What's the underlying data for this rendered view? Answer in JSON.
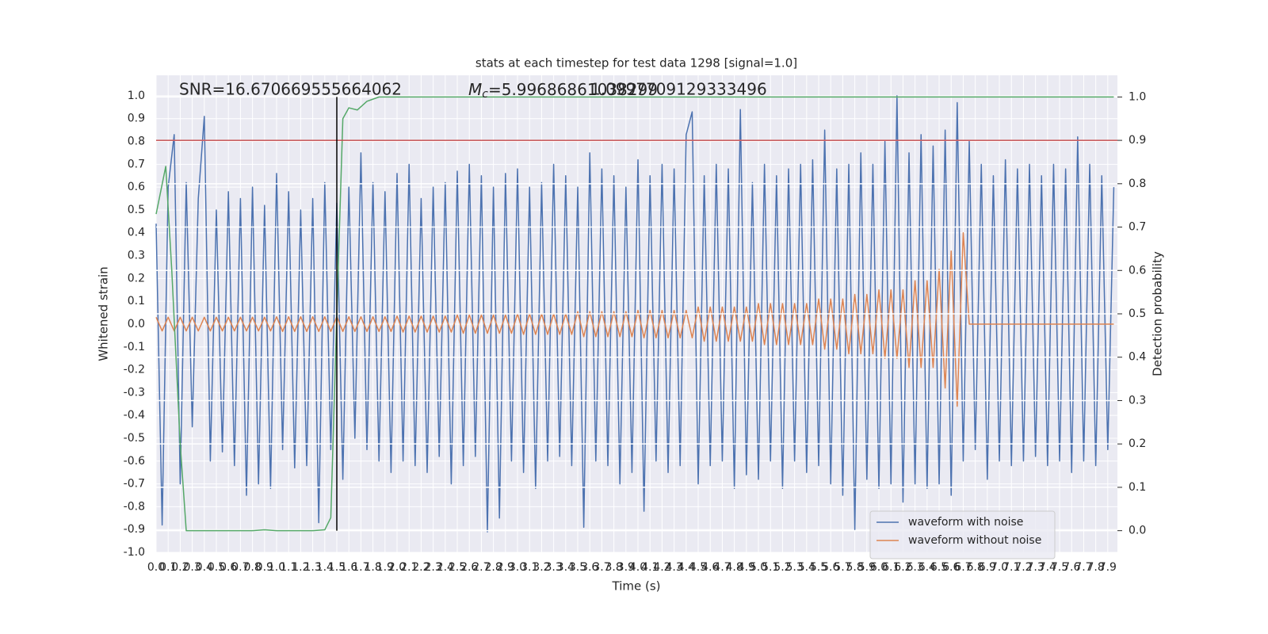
{
  "chart_data": {
    "type": "line",
    "title": "stats at each timestep for test data 1298 [signal=1.0]",
    "xlabel": "Time (s)",
    "ylabel": "Whitened strain",
    "y2label": "Detection probability",
    "snr_text": "SNR=16.670669555664062",
    "mc_label": {
      "symbol": "M",
      "subscript": "c",
      "text": "=5.99686861038299"
    },
    "overlap_text": "1.0997709129333496",
    "legend": "lower right",
    "grid": true,
    "xlim": [
      0,
      7.98
    ],
    "ylim": [
      -1.0,
      1.09
    ],
    "y2lim": [
      -0.05,
      1.05
    ],
    "xticks": [
      {
        "value": 0,
        "label": "0.0"
      },
      0.1,
      0.2,
      0.3,
      0.4,
      0.5,
      0.6,
      0.7,
      0.8,
      0.9,
      {
        "value": 1,
        "label": "1.0"
      },
      1.1,
      1.2,
      1.3,
      1.4,
      1.5,
      1.6,
      1.7,
      1.8,
      1.9,
      {
        "value": 2,
        "label": "2.0"
      },
      2.1,
      2.2,
      2.3,
      2.4,
      2.5,
      2.6,
      2.7,
      2.8,
      2.9,
      {
        "value": 3,
        "label": "3.0"
      },
      3.1,
      3.2,
      3.3,
      3.4,
      3.5,
      3.6,
      3.7,
      3.8,
      3.9,
      {
        "value": 4,
        "label": "4.0"
      },
      4.1,
      4.2,
      4.3,
      4.4,
      4.5,
      4.6,
      4.7,
      4.8,
      4.9,
      {
        "value": 5,
        "label": "5.0"
      },
      5.1,
      5.2,
      5.3,
      5.4,
      5.5,
      5.6,
      5.7,
      5.8,
      5.9,
      {
        "value": 6,
        "label": "6.0"
      },
      6.1,
      6.2,
      6.3,
      6.4,
      6.5,
      6.6,
      6.7,
      6.8,
      6.9,
      {
        "value": 7,
        "label": "7.0"
      },
      7.1,
      7.2,
      7.3,
      7.4,
      7.5,
      7.6,
      7.7,
      7.8,
      7.9
    ],
    "yticks": [
      {
        "value": 1,
        "label": "1.0"
      },
      0.9,
      0.8,
      0.7,
      0.6,
      0.5,
      0.4,
      0.3,
      0.2,
      0.1,
      {
        "value": 0,
        "label": "0.0"
      },
      -0.1,
      -0.2,
      -0.3,
      -0.4,
      -0.5,
      -0.6,
      -0.7,
      -0.8,
      -0.9,
      {
        "value": -1,
        "label": "-1.0"
      }
    ],
    "y2ticks": [
      {
        "value": 1,
        "label": "1.0"
      },
      0.9,
      0.8,
      0.7,
      0.6,
      0.5,
      0.4,
      0.3,
      0.2,
      0.1,
      {
        "value": 0,
        "label": "0.0"
      }
    ],
    "x": [
      0,
      0.05,
      0.1,
      0.15,
      0.2,
      0.25,
      0.3,
      0.35,
      0.4,
      0.45,
      0.5,
      0.55,
      0.6,
      0.65,
      0.7,
      0.75,
      0.8,
      0.85,
      0.9,
      0.95,
      1,
      1.05,
      1.1,
      1.15,
      1.2,
      1.25,
      1.3,
      1.35,
      1.4,
      1.45,
      1.5,
      1.55,
      1.6,
      1.65,
      1.7,
      1.75,
      1.8,
      1.85,
      1.9,
      1.95,
      2,
      2.05,
      2.1,
      2.15,
      2.2,
      2.25,
      2.3,
      2.35,
      2.4,
      2.45,
      2.5,
      2.55,
      2.6,
      2.65,
      2.7,
      2.75,
      2.8,
      2.85,
      2.9,
      2.95,
      3,
      3.05,
      3.1,
      3.15,
      3.2,
      3.25,
      3.3,
      3.35,
      3.4,
      3.45,
      3.5,
      3.55,
      3.6,
      3.65,
      3.7,
      3.75,
      3.8,
      3.85,
      3.9,
      3.95,
      4,
      4.05,
      4.1,
      4.15,
      4.2,
      4.25,
      4.3,
      4.35,
      4.4,
      4.45,
      4.5,
      4.55,
      4.6,
      4.65,
      4.7,
      4.75,
      4.8,
      4.85,
      4.9,
      4.95,
      5,
      5.05,
      5.1,
      5.15,
      5.2,
      5.25,
      5.3,
      5.35,
      5.4,
      5.45,
      5.5,
      5.55,
      5.6,
      5.65,
      5.7,
      5.75,
      5.8,
      5.85,
      5.9,
      5.95,
      6,
      6.05,
      6.1,
      6.15,
      6.2,
      6.25,
      6.3,
      6.35,
      6.4,
      6.45,
      6.5,
      6.55,
      6.6,
      6.65,
      6.7,
      6.75,
      6.8,
      6.85,
      6.9,
      6.95,
      7,
      7.05,
      7.1,
      7.15,
      7.2,
      7.25,
      7.3,
      7.35,
      7.4,
      7.45,
      7.5,
      7.55,
      7.6,
      7.65,
      7.7,
      7.75,
      7.8,
      7.85,
      7.9,
      7.95
    ],
    "series": [
      {
        "name": "waveform with noise",
        "color": "#4c72b0",
        "values": [
          0.44,
          -0.88,
          0.6,
          0.83,
          -0.7,
          0.62,
          -0.45,
          0.55,
          0.91,
          -0.6,
          0.5,
          -0.56,
          0.58,
          -0.62,
          0.55,
          -0.75,
          0.6,
          -0.7,
          0.52,
          -0.72,
          0.66,
          -0.55,
          0.58,
          -0.63,
          0.5,
          -0.62,
          0.55,
          -0.87,
          0.62,
          -0.55,
          0.53,
          -0.68,
          0.6,
          -0.5,
          0.75,
          -0.55,
          0.62,
          -0.6,
          0.58,
          -0.65,
          0.66,
          -0.6,
          0.7,
          -0.62,
          0.55,
          -0.65,
          0.6,
          -0.58,
          0.62,
          -0.7,
          0.67,
          -0.62,
          0.7,
          -0.58,
          0.65,
          -0.91,
          0.6,
          -0.85,
          0.66,
          -0.6,
          0.68,
          -0.65,
          0.6,
          -0.72,
          0.62,
          -0.6,
          0.7,
          -0.58,
          0.65,
          -0.62,
          0.6,
          -0.89,
          0.75,
          -0.6,
          0.68,
          -0.62,
          0.65,
          -0.7,
          0.6,
          -0.65,
          0.72,
          -0.82,
          0.65,
          -0.6,
          0.7,
          -0.65,
          0.68,
          -0.62,
          0.83,
          0.93,
          -0.7,
          0.65,
          -0.62,
          0.7,
          -0.6,
          0.68,
          -0.72,
          0.94,
          -0.66,
          0.62,
          -0.68,
          0.7,
          -0.6,
          0.65,
          -0.72,
          0.68,
          -0.6,
          0.7,
          -0.65,
          0.72,
          -0.62,
          0.85,
          -0.7,
          0.68,
          -0.75,
          0.7,
          -0.9,
          0.75,
          -0.68,
          0.7,
          -0.72,
          0.8,
          -0.7,
          1.0,
          -0.78,
          0.75,
          -0.7,
          0.83,
          -0.72,
          0.78,
          -0.7,
          0.85,
          -0.75,
          0.97,
          -0.6,
          0.8,
          -0.55,
          0.7,
          -0.68,
          0.65,
          -0.6,
          0.72,
          -0.62,
          0.68,
          -0.6,
          0.7,
          -0.58,
          0.65,
          -0.62,
          0.7,
          -0.6,
          0.68,
          -0.65,
          0.82,
          -0.6,
          0.7,
          -0.62,
          0.65,
          -0.55,
          0.6
        ]
      },
      {
        "name": "waveform without noise",
        "color": "#dd8452",
        "values": [
          0.03,
          -0.03,
          0.03,
          -0.03,
          0.03,
          -0.03,
          0.03,
          -0.03,
          0.03,
          -0.03,
          0.03,
          -0.03,
          0.03,
          -0.03,
          0.03,
          -0.03,
          0.03,
          -0.03,
          0.03,
          -0.03,
          0.032,
          -0.032,
          0.032,
          -0.032,
          0.032,
          -0.032,
          0.032,
          -0.032,
          0.032,
          -0.032,
          0.032,
          -0.032,
          0.032,
          -0.032,
          0.032,
          -0.032,
          0.032,
          -0.032,
          0.032,
          -0.032,
          0.035,
          -0.035,
          0.035,
          -0.035,
          0.035,
          -0.035,
          0.035,
          -0.035,
          0.035,
          -0.035,
          0.04,
          -0.04,
          0.04,
          -0.04,
          0.04,
          -0.04,
          0.04,
          -0.04,
          0.04,
          -0.04,
          0.045,
          -0.045,
          0.045,
          -0.045,
          0.045,
          -0.045,
          0.045,
          -0.045,
          0.045,
          -0.045,
          0.055,
          -0.055,
          0.055,
          -0.055,
          0.055,
          -0.055,
          0.055,
          -0.055,
          0.055,
          -0.055,
          0.06,
          -0.06,
          0.06,
          -0.06,
          0.06,
          -0.06,
          0.06,
          -0.06,
          0.06,
          -0.06,
          0.075,
          -0.075,
          0.075,
          -0.075,
          0.075,
          -0.075,
          0.075,
          -0.075,
          0.075,
          -0.075,
          0.09,
          -0.09,
          0.09,
          -0.09,
          0.09,
          -0.09,
          0.09,
          -0.09,
          0.09,
          -0.09,
          0.11,
          -0.11,
          0.11,
          -0.11,
          0.11,
          -0.13,
          0.13,
          -0.13,
          0.13,
          -0.13,
          0.15,
          -0.15,
          0.15,
          -0.15,
          0.15,
          -0.19,
          0.19,
          -0.19,
          0.19,
          -0.19,
          0.24,
          -0.28,
          0.32,
          -0.36,
          0.4,
          0,
          0,
          0,
          0,
          0,
          0,
          0,
          0,
          0,
          0,
          0,
          0,
          0,
          0,
          0,
          0,
          0,
          0,
          0,
          0,
          0,
          0,
          0,
          0,
          0
        ]
      },
      {
        "color": "#55a868",
        "axis": "y2",
        "x": [
          0,
          0.08,
          0.13,
          0.2,
          0.25,
          0.5,
          0.8,
          0.9,
          1.0,
          1.3,
          1.4,
          1.45,
          1.5,
          1.55,
          1.6,
          1.67,
          1.75,
          1.85,
          2.0,
          7.95
        ],
        "values": [
          0.73,
          0.84,
          0.6,
          0.2,
          0.0,
          0.0,
          0.0,
          0.002,
          0.0,
          0.0,
          0.002,
          0.03,
          0.5,
          0.95,
          0.975,
          0.97,
          0.99,
          1.0,
          1.0,
          1.0
        ]
      }
    ],
    "hlines": [
      {
        "y": 0.9,
        "axis": "y2",
        "color": "#c44e52"
      }
    ],
    "vlines": [
      {
        "x": 1.5,
        "ymin": 0.0,
        "ymax": 1.0,
        "axis": "y2",
        "color": "#000000"
      }
    ]
  }
}
